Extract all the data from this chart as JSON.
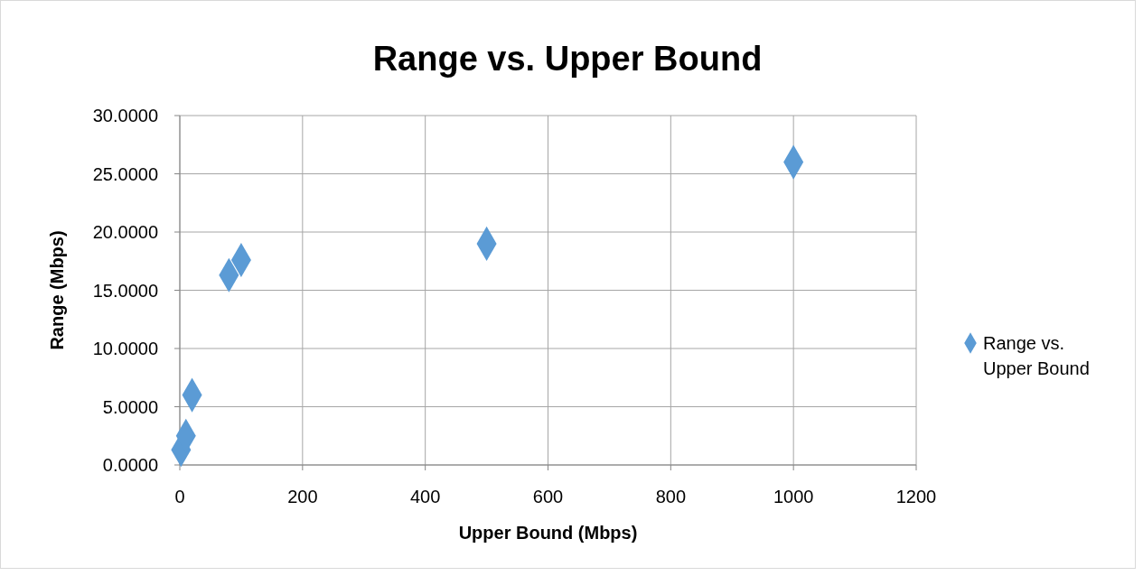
{
  "chart_data": {
    "type": "scatter",
    "title": "Range vs. Upper Bound",
    "xlabel": "Upper Bound (Mbps)",
    "ylabel": "Range (Mbps)",
    "x": [
      2,
      10,
      20,
      80,
      100,
      500,
      1000
    ],
    "series": [
      {
        "name": "Range vs. Upper Bound",
        "color": "#5b9bd5",
        "values": [
          1.3,
          2.5,
          6.0,
          16.3,
          17.6,
          19.0,
          26.0
        ]
      }
    ],
    "xlim": [
      0,
      1200
    ],
    "xticks": [
      0,
      200,
      400,
      600,
      800,
      1000,
      1200
    ],
    "ylim": [
      0,
      30
    ],
    "yticks": [
      {
        "value": 0,
        "label": "0.0000"
      },
      {
        "value": 5,
        "label": "5.0000"
      },
      {
        "value": 10,
        "label": "10.0000"
      },
      {
        "value": 15,
        "label": "15.0000"
      },
      {
        "value": 20,
        "label": "20.0000"
      },
      {
        "value": 25,
        "label": "25.0000"
      },
      {
        "value": 30,
        "label": "30.0000"
      }
    ],
    "grid": true,
    "legend": "right",
    "marker": "diamond"
  }
}
